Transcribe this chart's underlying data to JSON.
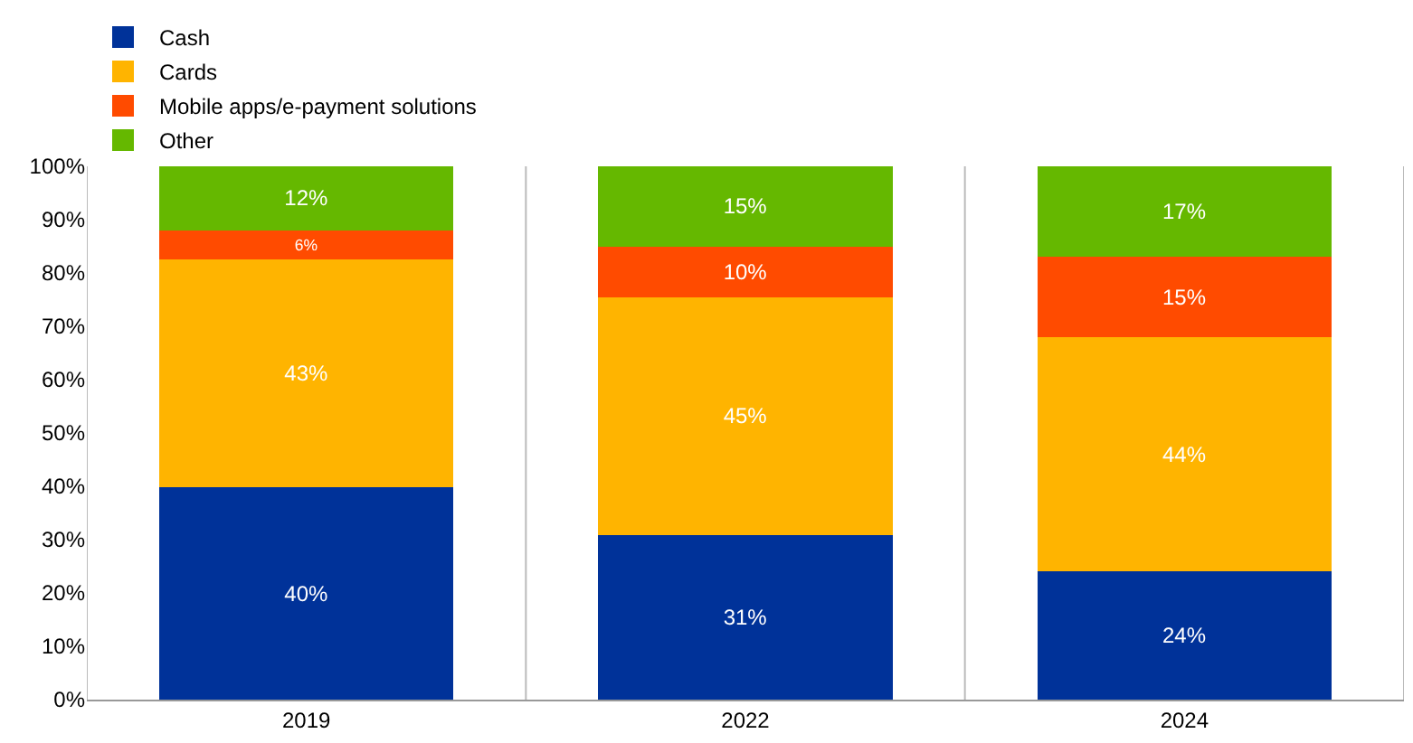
{
  "chart_data": {
    "type": "bar",
    "stacked": true,
    "categories": [
      "2019",
      "2022",
      "2024"
    ],
    "series": [
      {
        "name": "Cash",
        "color": "#003299",
        "values": [
          39.8,
          30.8,
          24
        ],
        "value_labels": [
          "40%",
          "31%",
          "24%"
        ]
      },
      {
        "name": "Cards",
        "color": "#ffb400",
        "values": [
          42.7,
          44.7,
          44
        ],
        "value_labels": [
          "43%",
          "45%",
          "44%"
        ]
      },
      {
        "name": "Mobile apps/e-payment solutions",
        "color": "#ff4b00",
        "values": [
          5.5,
          9.5,
          15
        ],
        "value_labels": [
          "6%",
          "10%",
          "15%"
        ]
      },
      {
        "name": "Other",
        "color": "#65b800",
        "values": [
          12,
          15,
          17
        ],
        "value_labels": [
          "12%",
          "15%",
          "17%"
        ]
      }
    ],
    "ylim": [
      0,
      100
    ],
    "yticks": [
      {
        "value": 0,
        "label": "0%"
      },
      {
        "value": 10,
        "label": "10%"
      },
      {
        "value": 20,
        "label": "20%"
      },
      {
        "value": 30,
        "label": "30%"
      },
      {
        "value": 40,
        "label": "40%"
      },
      {
        "value": 50,
        "label": "50%"
      },
      {
        "value": 60,
        "label": "60%"
      },
      {
        "value": 70,
        "label": "70%"
      },
      {
        "value": 80,
        "label": "80%"
      },
      {
        "value": 90,
        "label": "90%"
      },
      {
        "value": 100,
        "label": "100%"
      }
    ],
    "grid": "x",
    "legend": "top left"
  }
}
